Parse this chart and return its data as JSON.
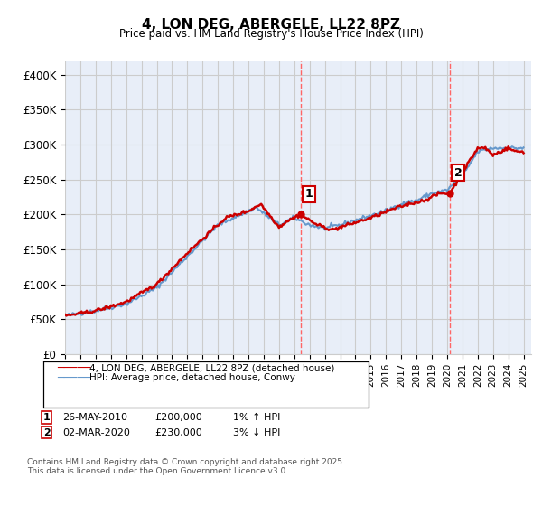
{
  "title": "4, LON DEG, ABERGELE, LL22 8PZ",
  "subtitle": "Price paid vs. HM Land Registry's House Price Index (HPI)",
  "ylabel_ticks": [
    "£0",
    "£50K",
    "£100K",
    "£150K",
    "£200K",
    "£250K",
    "£300K",
    "£350K",
    "£400K"
  ],
  "ytick_values": [
    0,
    50000,
    100000,
    150000,
    200000,
    250000,
    300000,
    350000,
    400000
  ],
  "ylim": [
    0,
    420000
  ],
  "xlim_start": 1995.0,
  "xlim_end": 2025.5,
  "sale1_x": 2010.4,
  "sale1_y": 200000,
  "sale2_x": 2020.17,
  "sale2_y": 230000,
  "legend_line1": "4, LON DEG, ABERGELE, LL22 8PZ (detached house)",
  "legend_line2": "HPI: Average price, detached house, Conwy",
  "annotation1_label": "1",
  "annotation1_date": "26-MAY-2010",
  "annotation1_price": "£200,000",
  "annotation1_hpi": "1% ↑ HPI",
  "annotation2_label": "2",
  "annotation2_date": "02-MAR-2020",
  "annotation2_price": "£230,000",
  "annotation2_hpi": "3% ↓ HPI",
  "footnote": "Contains HM Land Registry data © Crown copyright and database right 2025.\nThis data is licensed under the Open Government Licence v3.0.",
  "color_red": "#cc0000",
  "color_blue": "#6699cc",
  "color_grid": "#cccccc",
  "color_vline": "#ff6666",
  "bg_color": "#e8eef8",
  "plot_bg": "#ffffff"
}
